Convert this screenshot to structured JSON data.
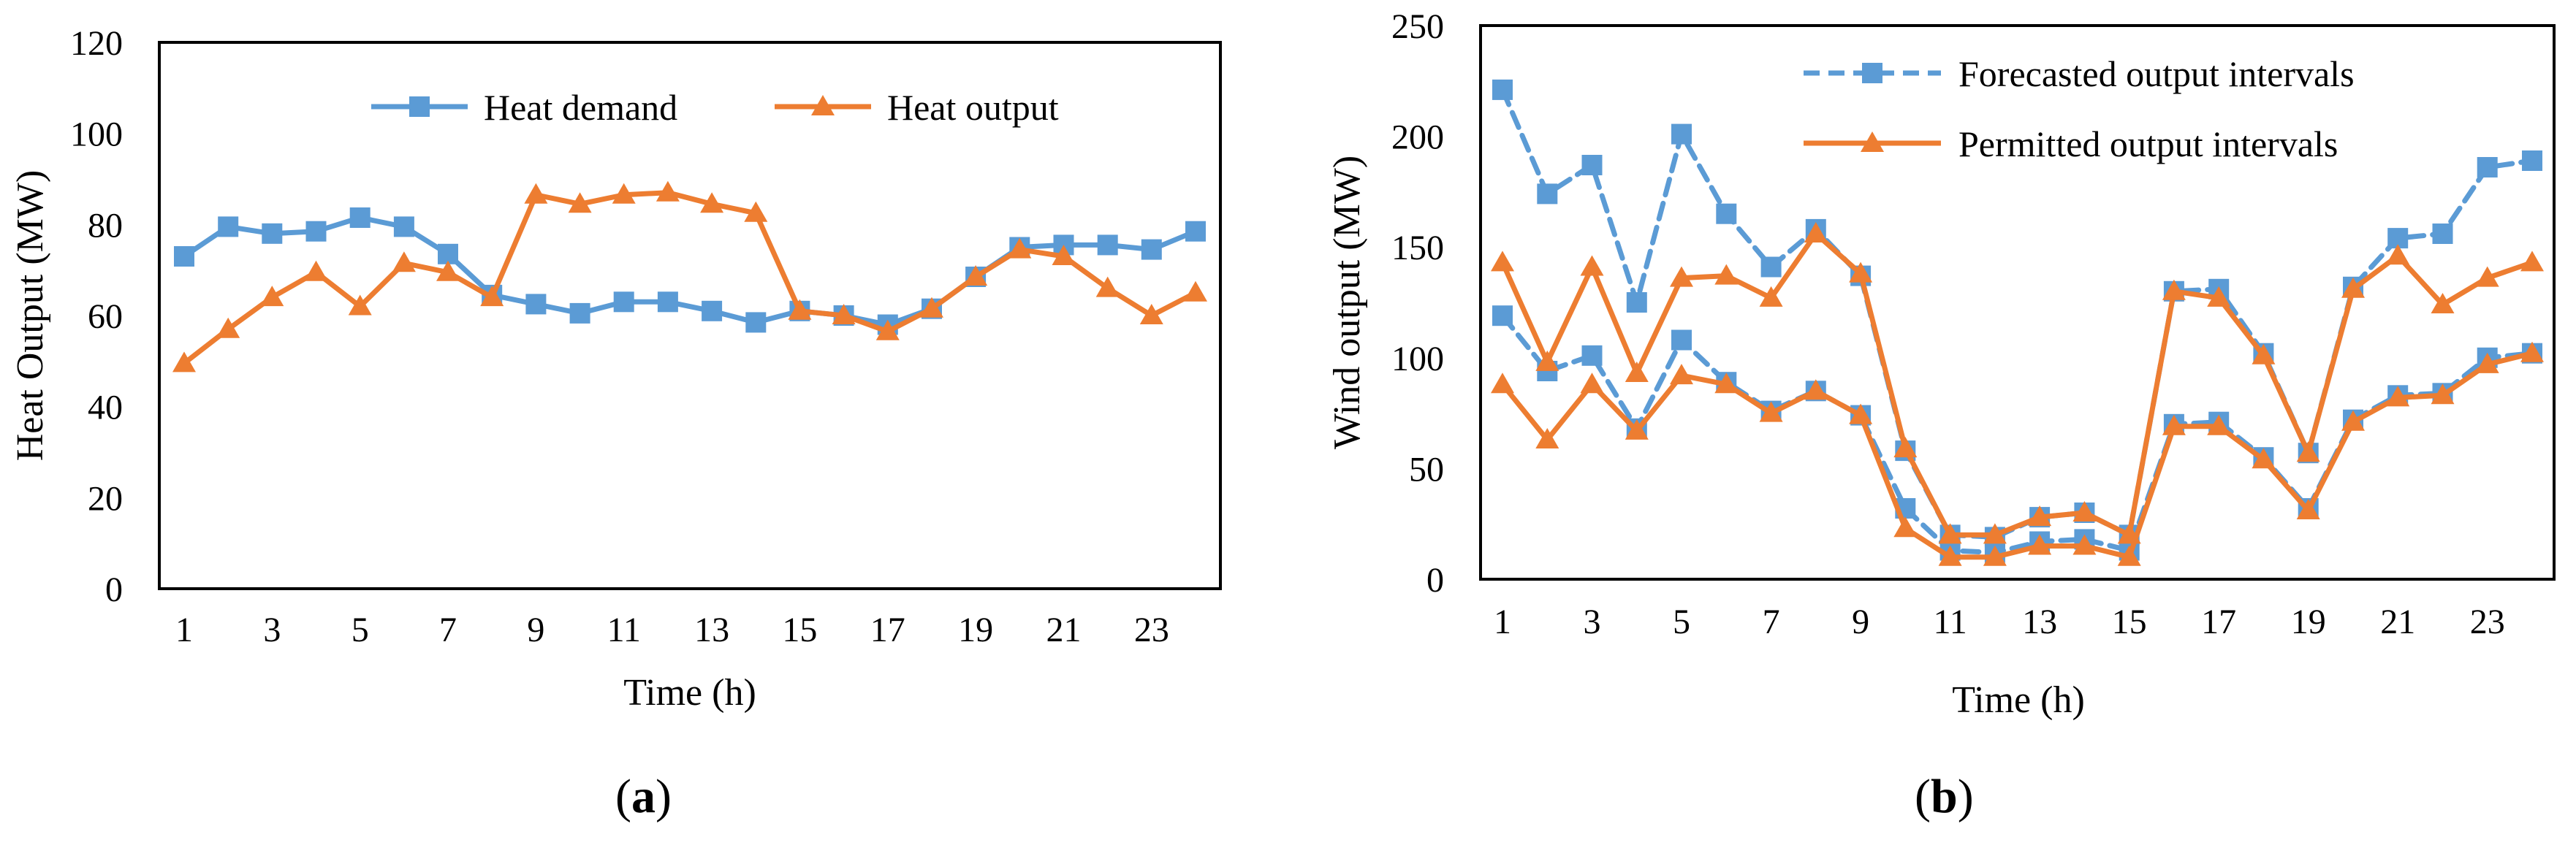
{
  "chart_data": [
    {
      "type": "line",
      "panel_label": {
        "open": "(",
        "letter": "a",
        "close": ")"
      },
      "xlabel": "Time (h)",
      "ylabel": "Heat Output (MW)",
      "xlim": [
        1,
        24
      ],
      "ylim": [
        0,
        120
      ],
      "x_ticks": [
        1,
        3,
        5,
        7,
        9,
        11,
        13,
        15,
        17,
        19,
        21,
        23
      ],
      "y_ticks": [
        0,
        20,
        40,
        60,
        80,
        100,
        120
      ],
      "grid": false,
      "legend_position": "top-center",
      "x": [
        1,
        2,
        3,
        4,
        5,
        6,
        7,
        8,
        9,
        10,
        11,
        12,
        13,
        14,
        15,
        16,
        17,
        18,
        19,
        20,
        21,
        22,
        23,
        24
      ],
      "series": [
        {
          "name": "Heat demand",
          "color": "#5B9BD5",
          "marker": "square",
          "style": "solid",
          "values": [
            73,
            79.5,
            78,
            78.5,
            81.5,
            79.5,
            73.5,
            64.5,
            62.5,
            60.5,
            63,
            63,
            61,
            58.5,
            61,
            60,
            58,
            61.5,
            68.5,
            75,
            75.5,
            75.5,
            74.5,
            78.5
          ]
        },
        {
          "name": "Heat output",
          "color": "#ED7D31",
          "marker": "triangle",
          "style": "solid",
          "values": [
            49.5,
            57,
            64,
            69.5,
            62,
            71.5,
            69.5,
            64,
            86.5,
            84.5,
            86.5,
            87,
            84.5,
            82.5,
            61,
            60,
            56.5,
            61.5,
            68.5,
            74.5,
            73,
            66,
            60,
            65
          ]
        }
      ]
    },
    {
      "type": "line",
      "panel_label": {
        "open": "(",
        "letter": "b",
        "close": ")"
      },
      "xlabel": "Time (h)",
      "ylabel": "Wind output (MW)",
      "xlim": [
        1,
        24
      ],
      "ylim": [
        0,
        250
      ],
      "x_ticks": [
        1,
        3,
        5,
        7,
        9,
        11,
        13,
        15,
        17,
        19,
        21,
        23
      ],
      "y_ticks": [
        0,
        50,
        100,
        150,
        200,
        250
      ],
      "grid": false,
      "legend_position": "top-right",
      "x": [
        1,
        2,
        3,
        4,
        5,
        6,
        7,
        8,
        9,
        10,
        11,
        12,
        13,
        14,
        15,
        16,
        17,
        18,
        19,
        20,
        21,
        22,
        23,
        24
      ],
      "series": [
        {
          "name": "Forecasted output intervals",
          "color": "#5B9BD5",
          "marker": "square",
          "style": "dashed",
          "values": [
            221,
            174,
            187,
            125,
            201,
            165,
            141,
            158,
            137,
            58,
            20,
            19,
            28,
            30,
            20,
            130,
            131,
            102,
            57,
            132,
            154,
            156,
            186,
            189
          ]
        },
        {
          "name": "",
          "color": "#5B9BD5",
          "marker": "square",
          "style": "dashed",
          "values": [
            119,
            94,
            101,
            68,
            108,
            89,
            76,
            85,
            74,
            32,
            13,
            12,
            17,
            18,
            13,
            70,
            71,
            55,
            32,
            72,
            83,
            84,
            100,
            102
          ]
        },
        {
          "name": "Permitted output intervals",
          "color": "#ED7D31",
          "marker": "triangle",
          "style": "solid",
          "values": [
            143,
            98,
            141,
            93,
            136,
            137,
            127,
            156,
            138,
            59,
            20,
            20,
            28,
            30,
            20,
            130,
            127,
            101,
            57,
            131,
            146,
            124,
            136,
            143
          ]
        },
        {
          "name": "",
          "color": "#ED7D31",
          "marker": "triangle",
          "style": "solid",
          "values": [
            88,
            63,
            88,
            67,
            92,
            88,
            75,
            85,
            74,
            23,
            10,
            10,
            15,
            15,
            10,
            69,
            69,
            54,
            31,
            71,
            82,
            83,
            97,
            102
          ]
        }
      ]
    }
  ]
}
